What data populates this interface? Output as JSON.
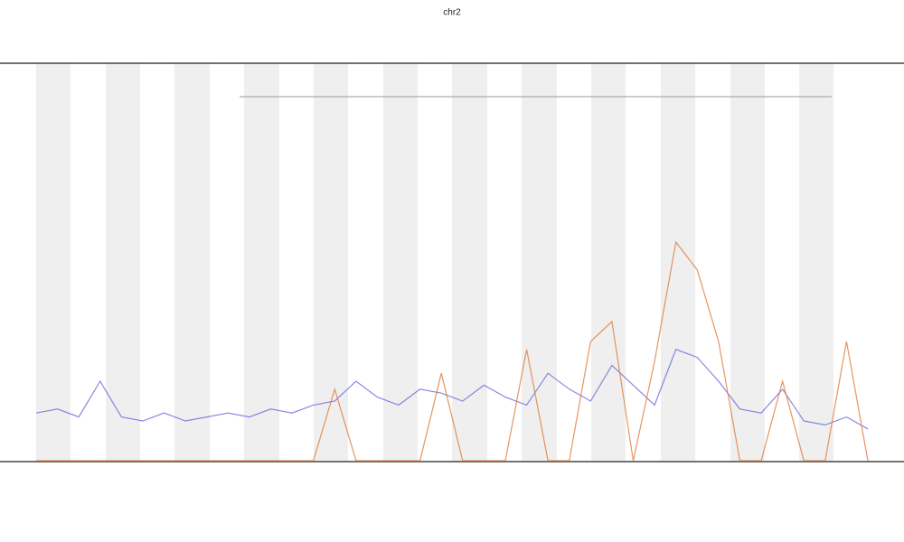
{
  "chart_data": {
    "type": "line",
    "title": "chr2",
    "x": [
      0,
      1,
      2,
      3,
      4,
      5,
      6,
      7,
      8,
      9,
      10,
      11,
      12,
      13,
      14,
      15,
      16,
      17,
      18,
      19,
      20,
      21,
      22,
      23,
      24,
      25,
      26,
      27,
      28,
      29,
      30,
      31,
      32,
      33,
      34,
      35,
      36,
      37,
      38,
      39
    ],
    "xlim": [
      0,
      39
    ],
    "ylim": [
      0,
      100
    ],
    "series": [
      {
        "color": "#6a6ae0",
        "values": [
          12,
          13,
          11,
          20,
          11,
          10,
          12,
          10,
          11,
          12,
          11,
          13,
          12,
          14,
          15,
          20,
          16,
          14,
          18,
          17,
          15,
          19,
          16,
          14,
          22,
          18,
          15,
          24,
          19,
          14,
          28,
          26,
          20,
          13,
          12,
          18,
          10,
          9,
          11,
          8
        ]
      },
      {
        "color": "#e07a3a",
        "values": [
          0,
          0,
          0,
          0,
          0,
          0,
          0,
          0,
          0,
          0,
          0,
          0,
          0,
          0,
          18,
          0,
          0,
          0,
          0,
          22,
          0,
          0,
          0,
          28,
          0,
          0,
          30,
          35,
          0,
          25,
          55,
          48,
          30,
          0,
          0,
          20,
          0,
          0,
          30,
          0
        ]
      }
    ]
  }
}
